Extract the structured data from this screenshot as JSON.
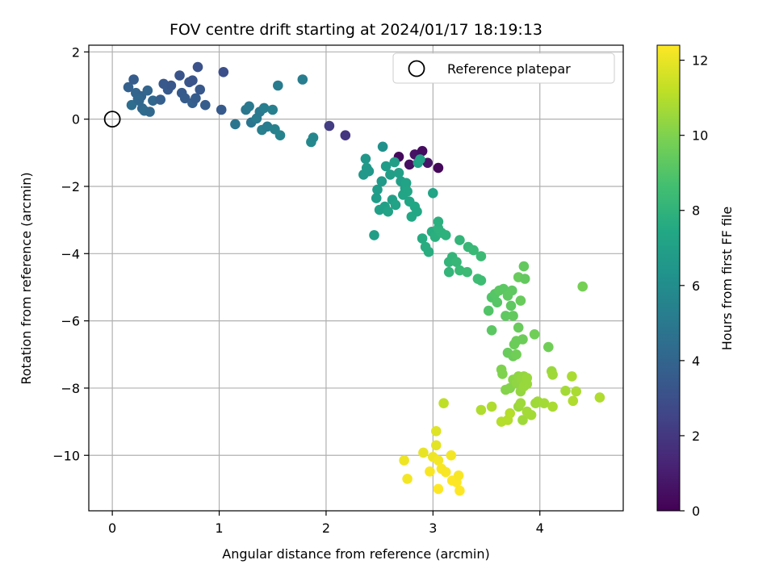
{
  "chart_data": {
    "type": "scatter",
    "title": "FOV centre drift starting at 2024/01/17 18:19:13",
    "xlabel": "Angular distance from reference (arcmin)",
    "ylabel": "Rotation from reference (arcmin)",
    "xlim": [
      -0.22,
      4.78
    ],
    "ylim": [
      -11.65,
      2.2
    ],
    "x_ticks": [
      0,
      1,
      2,
      3,
      4
    ],
    "y_ticks": [
      2,
      0,
      -2,
      -4,
      -6,
      -8,
      -10
    ],
    "grid": true,
    "legend": {
      "label": "Reference platepar",
      "placement": "top-right"
    },
    "reference_point": {
      "x": 0,
      "y": 0
    },
    "colorbar": {
      "label": "Hours from first FF file",
      "range": [
        0,
        12.4
      ],
      "ticks": [
        0,
        2,
        4,
        6,
        8,
        10,
        12
      ],
      "colormap": "viridis"
    },
    "points": [
      [
        2.68,
        -1.12,
        0.3
      ],
      [
        2.78,
        -1.35,
        0.5
      ],
      [
        2.83,
        -1.05,
        0.6
      ],
      [
        2.9,
        -0.95,
        0.4
      ],
      [
        2.95,
        -1.3,
        0.7
      ],
      [
        3.05,
        -1.45,
        0.2
      ],
      [
        2.03,
        -0.2,
        2.2
      ],
      [
        2.18,
        -0.48,
        1.9
      ],
      [
        0.15,
        0.95,
        3.8
      ],
      [
        0.2,
        1.18,
        3.6
      ],
      [
        0.22,
        0.78,
        4.0
      ],
      [
        0.25,
        0.55,
        4.2
      ],
      [
        0.27,
        0.68,
        3.9
      ],
      [
        0.28,
        0.32,
        4.1
      ],
      [
        0.3,
        0.25,
        4.3
      ],
      [
        0.33,
        0.85,
        4.0
      ],
      [
        0.35,
        0.22,
        4.2
      ],
      [
        0.38,
        0.55,
        4.1
      ],
      [
        0.45,
        0.58,
        3.7
      ],
      [
        0.48,
        1.05,
        3.4
      ],
      [
        0.52,
        0.88,
        3.5
      ],
      [
        0.55,
        1.0,
        3.3
      ],
      [
        0.63,
        1.3,
        3.2
      ],
      [
        0.65,
        0.78,
        3.5
      ],
      [
        0.68,
        0.62,
        3.6
      ],
      [
        0.72,
        1.1,
        3.3
      ],
      [
        0.75,
        1.15,
        3.2
      ],
      [
        0.75,
        0.48,
        3.7
      ],
      [
        0.78,
        0.62,
        3.6
      ],
      [
        0.8,
        1.55,
        3.1
      ],
      [
        0.82,
        0.88,
        3.4
      ],
      [
        0.87,
        0.42,
        3.6
      ],
      [
        1.02,
        0.28,
        3.5
      ],
      [
        1.04,
        1.4,
        3.0
      ],
      [
        0.18,
        0.42,
        4.4
      ],
      [
        0.24,
        0.6,
        4.1
      ],
      [
        1.15,
        -0.15,
        4.8
      ],
      [
        1.25,
        0.28,
        4.9
      ],
      [
        1.28,
        0.38,
        5.0
      ],
      [
        1.3,
        -0.1,
        4.8
      ],
      [
        1.35,
        0.02,
        5.1
      ],
      [
        1.38,
        0.22,
        5.0
      ],
      [
        1.4,
        -0.32,
        5.3
      ],
      [
        1.42,
        0.33,
        5.2
      ],
      [
        1.45,
        -0.22,
        5.1
      ],
      [
        1.5,
        0.28,
        5.3
      ],
      [
        1.52,
        -0.3,
        5.4
      ],
      [
        1.55,
        1.0,
        5.1
      ],
      [
        1.57,
        -0.48,
        5.5
      ],
      [
        1.78,
        1.18,
        5.2
      ],
      [
        1.86,
        -0.68,
        5.8
      ],
      [
        1.88,
        -0.55,
        5.7
      ],
      [
        2.35,
        -1.65,
        6.6
      ],
      [
        2.37,
        -1.18,
        6.5
      ],
      [
        2.38,
        -1.45,
        6.7
      ],
      [
        2.4,
        -1.55,
        6.6
      ],
      [
        2.45,
        -3.45,
        6.9
      ],
      [
        2.47,
        -2.35,
        6.8
      ],
      [
        2.48,
        -2.1,
        6.8
      ],
      [
        2.5,
        -2.7,
        7.0
      ],
      [
        2.52,
        -1.85,
        6.7
      ],
      [
        2.53,
        -0.82,
        6.2
      ],
      [
        2.55,
        -2.6,
        7.0
      ],
      [
        2.56,
        -1.4,
        6.8
      ],
      [
        2.58,
        -2.75,
        7.1
      ],
      [
        2.6,
        -1.65,
        6.9
      ],
      [
        2.62,
        -2.4,
        7.0
      ],
      [
        2.64,
        -1.28,
        6.9
      ],
      [
        2.65,
        -2.55,
        7.1
      ],
      [
        2.68,
        -1.6,
        7.0
      ],
      [
        2.7,
        -1.85,
        7.0
      ],
      [
        2.72,
        -2.25,
        7.2
      ],
      [
        2.74,
        -2.05,
        7.1
      ],
      [
        2.75,
        -1.9,
        7.1
      ],
      [
        2.76,
        -2.15,
        7.3
      ],
      [
        2.78,
        -2.45,
        7.3
      ],
      [
        2.8,
        -2.9,
        7.4
      ],
      [
        2.83,
        -2.6,
        7.4
      ],
      [
        2.85,
        -2.75,
        7.4
      ],
      [
        2.86,
        -1.3,
        7.0
      ],
      [
        2.88,
        -1.2,
        7.1
      ],
      [
        2.9,
        -3.55,
        7.6
      ],
      [
        2.93,
        -3.8,
        7.7
      ],
      [
        2.96,
        -3.95,
        7.7
      ],
      [
        2.99,
        -3.35,
        7.7
      ],
      [
        3.0,
        -2.2,
        7.2
      ],
      [
        3.02,
        -3.5,
        7.8
      ],
      [
        3.05,
        -3.25,
        7.9
      ],
      [
        3.05,
        -3.05,
        7.8
      ],
      [
        3.08,
        -3.38,
        7.9
      ],
      [
        3.12,
        -3.45,
        7.9
      ],
      [
        3.15,
        -4.25,
        8.1
      ],
      [
        3.15,
        -4.55,
        8.1
      ],
      [
        3.18,
        -4.1,
        8.1
      ],
      [
        3.22,
        -4.25,
        8.2
      ],
      [
        3.25,
        -4.5,
        8.3
      ],
      [
        3.25,
        -3.6,
        8.1
      ],
      [
        3.32,
        -4.55,
        8.4
      ],
      [
        3.33,
        -3.8,
        8.2
      ],
      [
        3.38,
        -3.9,
        8.3
      ],
      [
        3.42,
        -4.75,
        8.5
      ],
      [
        3.45,
        -4.8,
        8.5
      ],
      [
        3.45,
        -4.08,
        8.4
      ],
      [
        3.52,
        -5.7,
        9.0
      ],
      [
        3.55,
        -5.3,
        9.0
      ],
      [
        3.55,
        -6.28,
        9.2
      ],
      [
        3.58,
        -5.2,
        9.1
      ],
      [
        3.6,
        -5.45,
        9.1
      ],
      [
        3.62,
        -5.1,
        9.2
      ],
      [
        3.66,
        -5.05,
        9.2
      ],
      [
        3.68,
        -5.85,
        9.3
      ],
      [
        3.7,
        -5.25,
        9.3
      ],
      [
        3.7,
        -6.95,
        9.5
      ],
      [
        3.73,
        -5.55,
        9.3
      ],
      [
        3.74,
        -5.1,
        9.3
      ],
      [
        3.75,
        -5.85,
        9.4
      ],
      [
        3.75,
        -7.05,
        9.6
      ],
      [
        3.76,
        -6.7,
        9.6
      ],
      [
        3.78,
        -6.6,
        9.6
      ],
      [
        3.78,
        -7.0,
        9.7
      ],
      [
        3.8,
        -4.7,
        9.5
      ],
      [
        3.8,
        -6.2,
        9.5
      ],
      [
        3.82,
        -5.4,
        9.5
      ],
      [
        3.84,
        -6.55,
        9.6
      ],
      [
        3.85,
        -4.38,
        9.4
      ],
      [
        3.86,
        -4.75,
        9.4
      ],
      [
        3.95,
        -6.4,
        9.7
      ],
      [
        4.08,
        -6.78,
        9.7
      ],
      [
        4.4,
        -4.98,
        9.8
      ],
      [
        3.64,
        -7.45,
        10.0
      ],
      [
        3.65,
        -7.58,
        10.0
      ],
      [
        3.68,
        -8.05,
        10.1
      ],
      [
        3.72,
        -8.0,
        10.1
      ],
      [
        3.75,
        -7.75,
        10.2
      ],
      [
        3.78,
        -7.85,
        10.3
      ],
      [
        3.8,
        -7.65,
        10.3
      ],
      [
        3.82,
        -8.1,
        10.4
      ],
      [
        3.83,
        -7.72,
        10.4
      ],
      [
        3.85,
        -7.95,
        10.5
      ],
      [
        3.85,
        -7.65,
        10.4
      ],
      [
        3.88,
        -7.7,
        10.5
      ],
      [
        3.88,
        -7.88,
        10.5
      ],
      [
        3.8,
        -8.55,
        10.5
      ],
      [
        3.82,
        -8.45,
        10.6
      ],
      [
        3.84,
        -8.95,
        10.6
      ],
      [
        3.88,
        -8.7,
        10.7
      ],
      [
        3.92,
        -8.8,
        10.7
      ],
      [
        3.96,
        -8.45,
        10.6
      ],
      [
        3.98,
        -8.4,
        10.6
      ],
      [
        4.04,
        -8.45,
        10.7
      ],
      [
        4.11,
        -7.5,
        10.5
      ],
      [
        4.12,
        -7.6,
        10.6
      ],
      [
        4.12,
        -8.55,
        10.8
      ],
      [
        4.24,
        -8.08,
        10.7
      ],
      [
        4.3,
        -7.65,
        10.8
      ],
      [
        4.31,
        -8.38,
        10.9
      ],
      [
        4.34,
        -8.1,
        10.8
      ],
      [
        4.56,
        -8.28,
        10.9
      ],
      [
        3.45,
        -8.65,
        10.9
      ],
      [
        3.55,
        -8.55,
        10.9
      ],
      [
        3.64,
        -9.0,
        11.0
      ],
      [
        3.7,
        -8.95,
        11.0
      ],
      [
        3.72,
        -8.75,
        11.0
      ],
      [
        3.1,
        -8.45,
        11.2
      ],
      [
        2.73,
        -10.15,
        12.1
      ],
      [
        2.76,
        -10.7,
        12.2
      ],
      [
        2.91,
        -9.92,
        12.0
      ],
      [
        2.97,
        -10.48,
        12.3
      ],
      [
        3.0,
        -10.05,
        12.1
      ],
      [
        3.03,
        -9.28,
        11.8
      ],
      [
        3.03,
        -9.7,
        11.9
      ],
      [
        3.05,
        -10.15,
        12.2
      ],
      [
        3.05,
        -11.0,
        12.4
      ],
      [
        3.08,
        -10.4,
        12.3
      ],
      [
        3.12,
        -10.5,
        12.3
      ],
      [
        3.17,
        -10.0,
        12.2
      ],
      [
        3.18,
        -10.75,
        12.4
      ],
      [
        3.22,
        -10.8,
        12.4
      ],
      [
        3.24,
        -10.6,
        12.3
      ],
      [
        3.25,
        -11.05,
        12.4
      ]
    ]
  }
}
